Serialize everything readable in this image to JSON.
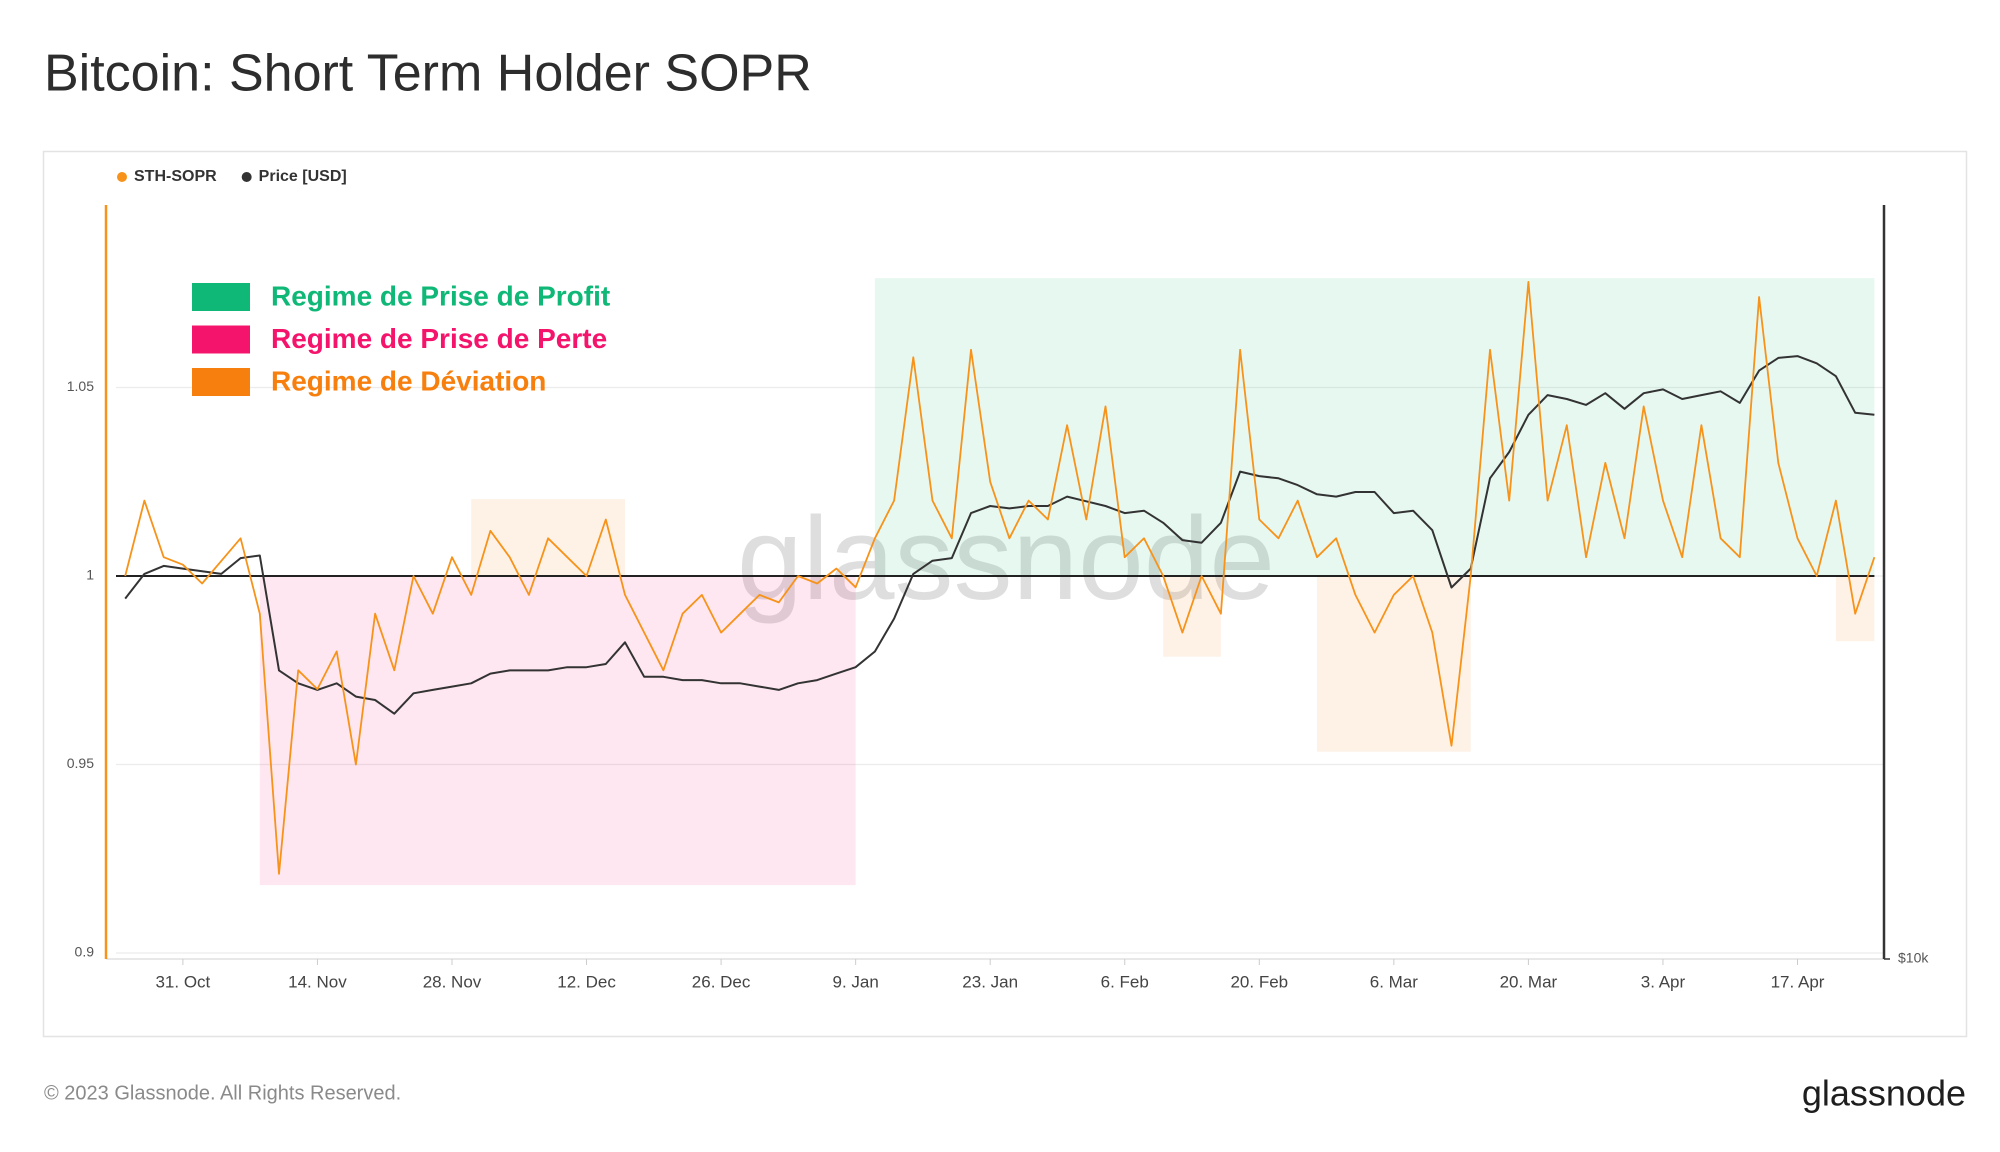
{
  "chart_data": {
    "type": "line",
    "title": "Bitcoin: Short Term Holder SOPR",
    "x": [
      "25. Oct",
      "27. Oct",
      "29. Oct",
      "31. Oct",
      "2. Nov",
      "4. Nov",
      "6. Nov",
      "8. Nov",
      "10. Nov",
      "12. Nov",
      "14. Nov",
      "16. Nov",
      "18. Nov",
      "20. Nov",
      "22. Nov",
      "24. Nov",
      "26. Nov",
      "28. Nov",
      "30. Nov",
      "2. Dec",
      "4. Dec",
      "6. Dec",
      "8. Dec",
      "10. Dec",
      "12. Dec",
      "14. Dec",
      "16. Dec",
      "18. Dec",
      "20. Dec",
      "22. Dec",
      "24. Dec",
      "26. Dec",
      "28. Dec",
      "30. Dec",
      "1. Jan",
      "3. Jan",
      "5. Jan",
      "7. Jan",
      "9. Jan",
      "11. Jan",
      "13. Jan",
      "15. Jan",
      "17. Jan",
      "19. Jan",
      "21. Jan",
      "23. Jan",
      "25. Jan",
      "27. Jan",
      "29. Jan",
      "31. Jan",
      "2. Feb",
      "4. Feb",
      "6. Feb",
      "8. Feb",
      "10. Feb",
      "12. Feb",
      "14. Feb",
      "16. Feb",
      "18. Feb",
      "20. Feb",
      "22. Feb",
      "24. Feb",
      "26. Feb",
      "28. Feb",
      "2. Mar",
      "4. Mar",
      "6. Mar",
      "8. Mar",
      "10. Mar",
      "12. Mar",
      "14. Mar",
      "16. Mar",
      "18. Mar",
      "20. Mar",
      "22. Mar",
      "24. Mar",
      "26. Mar",
      "28. Mar",
      "30. Mar",
      "1. Apr",
      "3. Apr",
      "5. Apr",
      "7. Apr",
      "9. Apr",
      "11. Apr",
      "13. Apr",
      "15. Apr",
      "17. Apr",
      "19. Apr",
      "21. Apr",
      "23. Apr",
      "25. Apr"
    ],
    "series": [
      {
        "name": "STH-SOPR",
        "color": "#f7931a",
        "values": [
          1.0,
          1.02,
          1.005,
          1.003,
          0.998,
          1.004,
          1.01,
          0.99,
          0.921,
          0.975,
          0.97,
          0.98,
          0.95,
          0.99,
          0.975,
          1.0,
          0.99,
          1.005,
          0.995,
          1.012,
          1.005,
          0.995,
          1.01,
          1.005,
          1.0,
          1.015,
          0.995,
          0.985,
          0.975,
          0.99,
          0.995,
          0.985,
          0.99,
          0.995,
          0.993,
          1.0,
          0.998,
          1.002,
          0.997,
          1.01,
          1.02,
          1.058,
          1.02,
          1.01,
          1.06,
          1.025,
          1.01,
          1.02,
          1.015,
          1.04,
          1.015,
          1.045,
          1.005,
          1.01,
          1.0,
          0.985,
          1.0,
          0.99,
          1.06,
          1.015,
          1.01,
          1.02,
          1.005,
          1.01,
          0.995,
          0.985,
          0.995,
          1.0,
          0.985,
          0.955,
          1.0,
          1.06,
          1.02,
          1.078,
          1.02,
          1.04,
          1.005,
          1.03,
          1.01,
          1.045,
          1.02,
          1.005,
          1.04,
          1.01,
          1.005,
          1.074,
          1.03,
          1.01,
          1.0,
          1.02,
          0.99,
          1.005
        ]
      },
      {
        "name": "Price [USD]",
        "color": "#333333",
        "axis": "y2",
        "values": [
          19400,
          20300,
          20600,
          20500,
          20400,
          20300,
          20900,
          21000,
          17000,
          16600,
          16400,
          16600,
          16200,
          16100,
          15700,
          16300,
          16400,
          16500,
          16600,
          16900,
          17000,
          17000,
          17000,
          17100,
          17100,
          17200,
          17900,
          16800,
          16800,
          16700,
          16700,
          16600,
          16600,
          16500,
          16400,
          16600,
          16700,
          16900,
          17100,
          17600,
          18700,
          20300,
          20800,
          20900,
          22700,
          23000,
          22900,
          23000,
          23000,
          23400,
          23200,
          23000,
          22700,
          22800,
          22300,
          21600,
          21500,
          22300,
          24500,
          24300,
          24200,
          23900,
          23500,
          23400,
          23600,
          23600,
          22700,
          22800,
          22000,
          19800,
          20500,
          24200,
          25400,
          27200,
          28200,
          28000,
          27700,
          28300,
          27500,
          28300,
          28500,
          28000,
          28200,
          28400,
          27800,
          29500,
          30200,
          30300,
          29900,
          29200,
          27300,
          27200
        ]
      }
    ],
    "xticks": [
      "31. Oct",
      "14. Nov",
      "28. Nov",
      "12. Dec",
      "26. Dec",
      "9. Jan",
      "23. Jan",
      "6. Feb",
      "20. Feb",
      "6. Mar",
      "20. Mar",
      "3. Apr",
      "17. Apr"
    ],
    "ylim": [
      0.9,
      1.1
    ],
    "yticks": [
      0.9,
      0.95,
      1,
      1.05
    ],
    "y2lim": [
      10000,
      40000
    ],
    "y2ticks": [
      {
        "value": 10000,
        "label": "$10k"
      }
    ],
    "y2_log": true,
    "grid": true,
    "baseline": 1,
    "regimes": [
      {
        "label": "Regime de Prise de Profit",
        "color": "#10b877",
        "areas": [
          {
            "x": [
              "11. Jan",
              "25. Apr"
            ],
            "y": [
              1,
              1.079
            ]
          }
        ]
      },
      {
        "label": "Regime de Prise de Perte",
        "color": "#f5146c",
        "areas": [
          {
            "x": [
              "8. Nov",
              "9. Jan"
            ],
            "y": [
              0.918,
              1
            ]
          }
        ]
      },
      {
        "label": "Regime de Déviation",
        "color": "#f77f0e",
        "areas": [
          {
            "x": [
              "30. Nov",
              "16. Dec"
            ],
            "y": [
              1,
              1.0204
            ]
          },
          {
            "x": [
              "10. Feb",
              "16. Feb"
            ],
            "y": [
              0.9786,
              1
            ]
          },
          {
            "x": [
              "26. Feb",
              "14. Mar"
            ],
            "y": [
              0.9534,
              1
            ]
          },
          {
            "x": [
              "21. Apr",
              "25. Apr"
            ],
            "y": [
              0.9827,
              1
            ]
          }
        ]
      }
    ]
  },
  "watermark": "glassnode",
  "footer": "© 2023 Glassnode. All Rights Reserved.",
  "brand": "glassnode"
}
